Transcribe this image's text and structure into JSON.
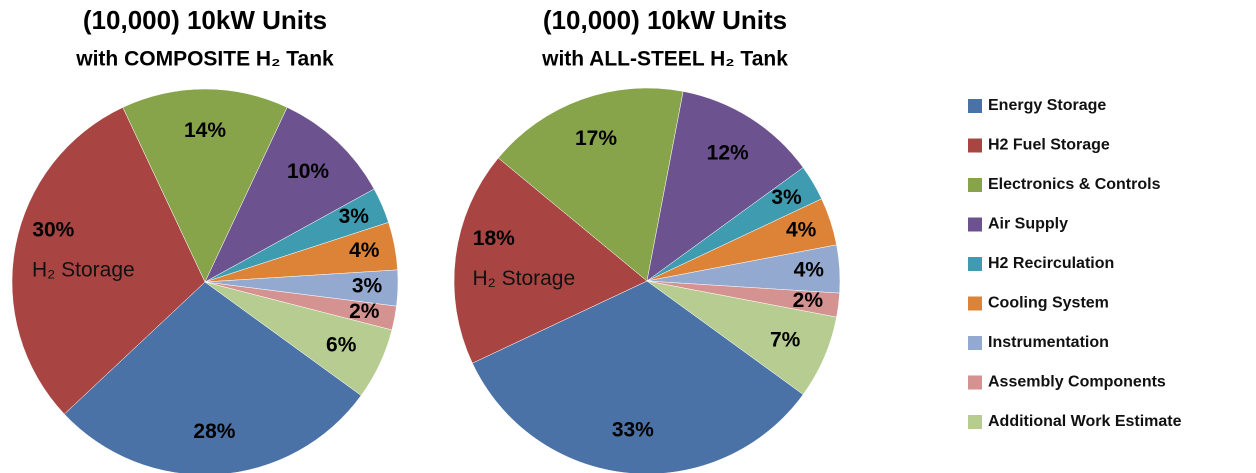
{
  "chart_data": [
    {
      "type": "pie",
      "title": "(10,000) 10kW Units",
      "subtitle": "with COMPOSITE H₂ Tank",
      "annotation": "H₂ Storage",
      "categories": [
        "Energy Storage",
        "H2 Fuel Storage",
        "Electronics & Controls",
        "Air Supply",
        "H2 Recirculation",
        "Cooling System",
        "Instrumentation",
        "Assembly Components",
        "Additional Work Estimate"
      ],
      "values": [
        28,
        30,
        14,
        10,
        3,
        4,
        3,
        2,
        6
      ],
      "value_labels": [
        "28%",
        "30%",
        "14%",
        "10%",
        "3%",
        "4%",
        "3%",
        "2%",
        "6%"
      ],
      "colors": [
        "#4a72a6",
        "#a84543",
        "#88a44b",
        "#6c5390",
        "#3f9bb0",
        "#dd8338",
        "#93a9cf",
        "#d49291",
        "#b6cc90"
      ]
    },
    {
      "type": "pie",
      "title": "(10,000) 10kW Units",
      "subtitle": "with ALL-STEEL H₂ Tank",
      "annotation": "H₂ Storage",
      "categories": [
        "Energy Storage",
        "H2 Fuel Storage",
        "Electronics & Controls",
        "Air Supply",
        "H2 Recirculation",
        "Cooling System",
        "Instrumentation",
        "Assembly Components",
        "Additional Work Estimate"
      ],
      "values": [
        33,
        18,
        17,
        12,
        3,
        4,
        4,
        2,
        7
      ],
      "value_labels": [
        "33%",
        "18%",
        "17%",
        "12%",
        "3%",
        "4%",
        "4%",
        "2%",
        "7%"
      ],
      "colors": [
        "#4a72a6",
        "#a84543",
        "#88a44b",
        "#6c5390",
        "#3f9bb0",
        "#dd8338",
        "#93a9cf",
        "#d49291",
        "#b6cc90"
      ]
    }
  ]
}
